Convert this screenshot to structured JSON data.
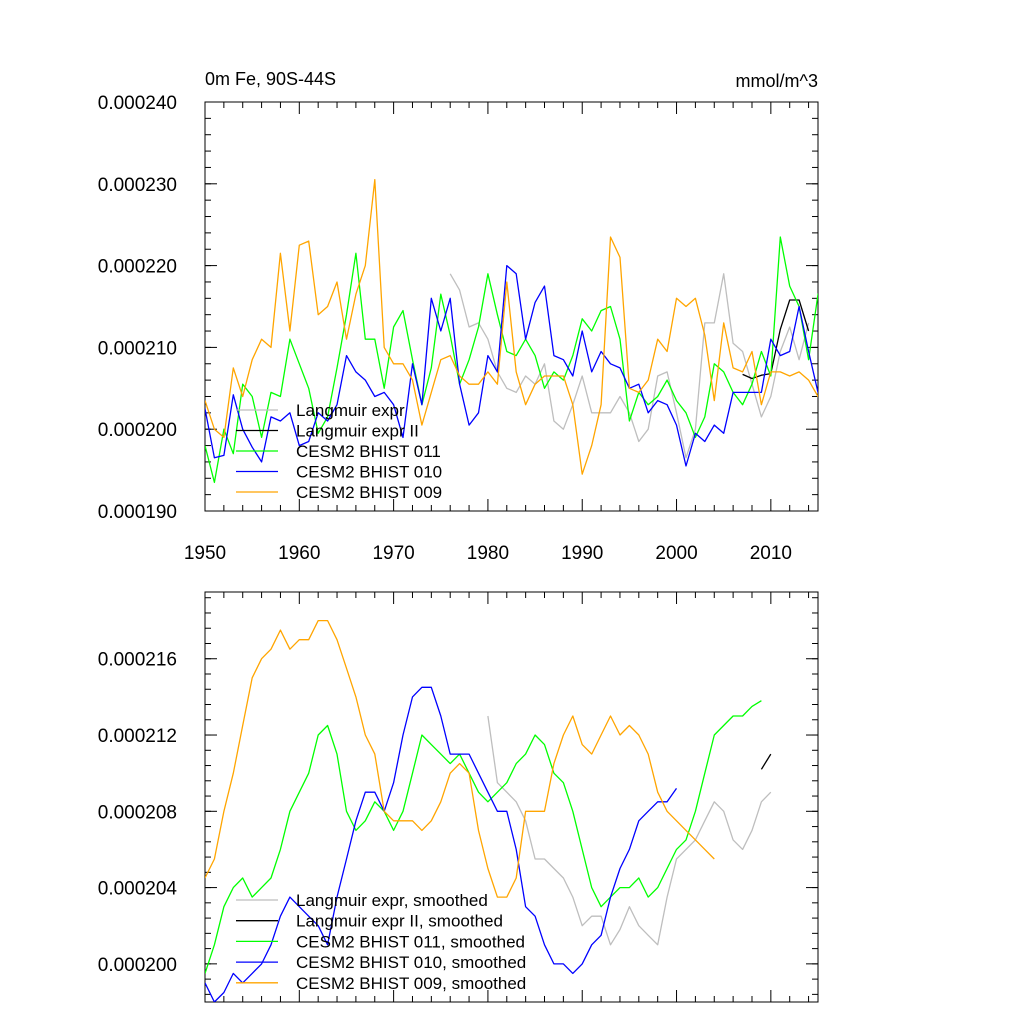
{
  "chart_data": [
    {
      "type": "line",
      "title_left": "0m Fe, 90S-44S",
      "title_right": "mmol/m^3",
      "xlim": [
        1950,
        2015
      ],
      "ylim": [
        0.00019,
        0.00024
      ],
      "x_ticks": [
        1950,
        1960,
        1970,
        1980,
        1990,
        2000,
        2010
      ],
      "y_ticks": [
        0.00019,
        0.0002,
        0.00021,
        0.00022,
        0.00023,
        0.00024
      ],
      "x_tick_labels": [
        "1950",
        "1960",
        "1970",
        "1980",
        "1990",
        "2000",
        "2010"
      ],
      "y_tick_labels": [
        "0.000190",
        "0.000200",
        "0.000210",
        "0.000220",
        "0.000230",
        "0.000240"
      ],
      "series": [
        {
          "name": "Langmuir expr",
          "color": "#bebebe",
          "x_start": 1976,
          "values": [
            0.000219,
            0.000217,
            0.0002125,
            0.000213,
            0.000211,
            0.000207,
            0.000205,
            0.0002045,
            0.0002065,
            0.0002055,
            0.000208,
            0.000201,
            0.0002,
            0.000203,
            0.0002065,
            0.000202,
            0.000202,
            0.000202,
            0.000204,
            0.000202,
            0.0001985,
            0.0002,
            0.0002065,
            0.000207,
            0.000202,
            0.0001965,
            0.0002,
            0.000213,
            0.000213,
            0.000219,
            0.0002105,
            0.0002095,
            0.0002055,
            0.0002015,
            0.000204,
            0.0002095,
            0.0002125,
            0.0002085,
            0.000213
          ]
        },
        {
          "name": "Langmuir expr II",
          "color": "#000000",
          "x_start": 2007,
          "values": [
            0.0002067,
            0.0002062,
            0.0002066,
            0.0002068,
            0.0002122,
            0.0002158,
            0.0002158,
            0.000212
          ]
        },
        {
          "name": "CESM2 BHIST 011",
          "color": "#00ff00",
          "x_start": 1950,
          "values": [
            0.000198,
            0.0001935,
            0.0002,
            0.000197,
            0.0002055,
            0.000204,
            0.000199,
            0.0002045,
            0.000204,
            0.000211,
            0.000208,
            0.000205,
            0.0001995,
            0.0002015,
            0.0002075,
            0.000214,
            0.0002215,
            0.000211,
            0.000211,
            0.000205,
            0.0002125,
            0.0002145,
            0.0002085,
            0.000203,
            0.0002075,
            0.0002165,
            0.0002115,
            0.0002055,
            0.0002085,
            0.0002125,
            0.000219,
            0.000214,
            0.0002095,
            0.000209,
            0.000211,
            0.000209,
            0.000205,
            0.000207,
            0.000206,
            0.000209,
            0.0002135,
            0.000212,
            0.0002145,
            0.000215,
            0.000211,
            0.000201,
            0.0002045,
            0.000203,
            0.000204,
            0.000206,
            0.0002035,
            0.000202,
            0.000199,
            0.0002015,
            0.000208,
            0.000207,
            0.0002045,
            0.000203,
            0.0002055,
            0.0002095,
            0.0002065,
            0.0002235,
            0.0002175,
            0.000215,
            0.0002085,
            0.0002165,
            0.000208
          ]
        },
        {
          "name": "CESM2 BHIST 010",
          "color": "#0000ff",
          "x_start": 1950,
          "values": [
            0.0002025,
            0.0001965,
            0.0001968,
            0.0002042,
            0.0002,
            0.0001978,
            0.000196,
            0.0002015,
            0.000201,
            0.000202,
            0.000198,
            0.0001985,
            0.000202,
            0.000201,
            0.000203,
            0.000209,
            0.000207,
            0.000206,
            0.000204,
            0.0002045,
            0.000203,
            0.000199,
            0.000208,
            0.000203,
            0.000216,
            0.000212,
            0.000216,
            0.0002055,
            0.0002005,
            0.000202,
            0.000209,
            0.000207,
            0.00022,
            0.000219,
            0.000211,
            0.0002155,
            0.0002175,
            0.000209,
            0.0002085,
            0.0002065,
            0.000212,
            0.000207,
            0.0002095,
            0.000208,
            0.0002075,
            0.000205,
            0.0002055,
            0.000202,
            0.0002035,
            0.000203,
            0.0002005,
            0.0001955,
            0.0001995,
            0.0001985,
            0.0002005,
            0.0001995,
            0.0002045,
            0.0002045,
            0.0002045,
            0.0002045,
            0.000211,
            0.000209,
            0.0002095,
            0.000215,
            0.0002095,
            0.0002045,
            0.0002095
          ]
        },
        {
          "name": "CESM2 BHIST 009",
          "color": "#ffa500",
          "x_start": 1950,
          "values": [
            0.0002035,
            0.0002,
            0.000199,
            0.0002075,
            0.000204,
            0.0002085,
            0.000211,
            0.00021,
            0.0002215,
            0.000212,
            0.0002225,
            0.000223,
            0.000214,
            0.000215,
            0.000218,
            0.000211,
            0.0002165,
            0.00022,
            0.0002305,
            0.00021,
            0.000208,
            0.000208,
            0.000206,
            0.0002005,
            0.0002045,
            0.0002085,
            0.000209,
            0.0002065,
            0.0002055,
            0.0002055,
            0.000207,
            0.0002055,
            0.000218,
            0.000207,
            0.000203,
            0.0002055,
            0.0002065,
            0.0002065,
            0.0002065,
            0.000203,
            0.0001945,
            0.000198,
            0.000203,
            0.0002235,
            0.000221,
            0.000205,
            0.0002045,
            0.000206,
            0.000211,
            0.0002095,
            0.000216,
            0.000215,
            0.000216,
            0.0002115,
            0.0002035,
            0.000213,
            0.0002075,
            0.000207,
            0.0002095,
            0.000203,
            0.000207,
            0.000207,
            0.0002065,
            0.000207,
            0.000206,
            0.000204,
            0.000203
          ]
        }
      ]
    },
    {
      "type": "line",
      "xlim": [
        1950,
        2015
      ],
      "ylim": [
        0.000198,
        0.0002195
      ],
      "x_ticks": [
        1950,
        1960,
        1970,
        1980,
        1990,
        2000,
        2010
      ],
      "y_ticks": [
        0.0002,
        0.000204,
        0.000208,
        0.000212,
        0.000216
      ],
      "y_tick_labels": [
        "0.000200",
        "0.000204",
        "0.000208",
        "0.000212",
        "0.000216"
      ],
      "series": [
        {
          "name": "Langmuir expr, smoothed",
          "color": "#bebebe",
          "x_start": 1980,
          "values": [
            0.000213,
            0.0002095,
            0.000209,
            0.0002085,
            0.0002075,
            0.0002055,
            0.0002055,
            0.000205,
            0.0002045,
            0.0002035,
            0.000202,
            0.0002025,
            0.0002025,
            0.000201,
            0.0002018,
            0.000203,
            0.000202,
            0.0002015,
            0.000201,
            0.0002035,
            0.0002055,
            0.000206,
            0.0002065,
            0.0002075,
            0.0002085,
            0.000208,
            0.0002065,
            0.000206,
            0.000207,
            0.0002085,
            0.000209
          ]
        },
        {
          "name": "Langmuir expr II, smoothed",
          "color": "#000000",
          "x_start": 2009,
          "values": [
            0.0002102,
            0.000211
          ]
        },
        {
          "name": "CESM2 BHIST 011, smoothed",
          "color": "#00ff00",
          "x_start": 1950,
          "values": [
            0.0001995,
            0.000201,
            0.000203,
            0.000204,
            0.0002045,
            0.0002035,
            0.000204,
            0.0002045,
            0.000206,
            0.000208,
            0.000209,
            0.00021,
            0.000212,
            0.0002125,
            0.000211,
            0.000208,
            0.000207,
            0.0002075,
            0.0002085,
            0.000208,
            0.000207,
            0.000208,
            0.00021,
            0.000212,
            0.0002115,
            0.000211,
            0.0002105,
            0.000211,
            0.00021,
            0.000209,
            0.0002085,
            0.000209,
            0.0002095,
            0.0002105,
            0.000211,
            0.000212,
            0.0002115,
            0.00021,
            0.0002095,
            0.000208,
            0.000206,
            0.000204,
            0.000203,
            0.0002035,
            0.000204,
            0.000204,
            0.0002045,
            0.0002035,
            0.000204,
            0.000205,
            0.000206,
            0.0002065,
            0.000208,
            0.00021,
            0.000212,
            0.0002125,
            0.000213,
            0.000213,
            0.0002135,
            0.0002138
          ]
        },
        {
          "name": "CESM2 BHIST 010, smoothed",
          "color": "#0000ff",
          "x_start": 1950,
          "values": [
            0.000199,
            0.000198,
            0.0001985,
            0.0001995,
            0.000199,
            0.0001995,
            0.0002,
            0.000201,
            0.0002025,
            0.0002035,
            0.000203,
            0.0002025,
            0.000202,
            0.000201,
            0.0002035,
            0.0002055,
            0.0002075,
            0.000209,
            0.000209,
            0.000208,
            0.0002095,
            0.000212,
            0.000214,
            0.0002145,
            0.0002145,
            0.000213,
            0.000211,
            0.000211,
            0.000211,
            0.00021,
            0.000209,
            0.000208,
            0.000208,
            0.000206,
            0.000203,
            0.0002025,
            0.000201,
            0.0002,
            0.0002,
            0.0001995,
            0.0002,
            0.000201,
            0.0002015,
            0.0002035,
            0.000205,
            0.000206,
            0.0002075,
            0.000208,
            0.0002085,
            0.0002085,
            0.0002092
          ]
        },
        {
          "name": "CESM2 BHIST 009, smoothed",
          "color": "#ffa500",
          "x_start": 1950,
          "values": [
            0.0002045,
            0.0002055,
            0.000208,
            0.00021,
            0.0002125,
            0.000215,
            0.000216,
            0.0002165,
            0.0002175,
            0.0002165,
            0.000217,
            0.000217,
            0.000218,
            0.000218,
            0.000217,
            0.0002155,
            0.000214,
            0.000212,
            0.000211,
            0.000208,
            0.0002075,
            0.0002075,
            0.0002075,
            0.000207,
            0.0002075,
            0.0002085,
            0.00021,
            0.0002105,
            0.00021,
            0.000207,
            0.000205,
            0.0002035,
            0.0002035,
            0.0002045,
            0.000208,
            0.000208,
            0.000208,
            0.0002105,
            0.000212,
            0.000213,
            0.0002115,
            0.000211,
            0.000212,
            0.000213,
            0.000212,
            0.0002125,
            0.000212,
            0.000211,
            0.000209,
            0.000208,
            0.0002075,
            0.000207,
            0.0002065,
            0.000206,
            0.0002055
          ]
        }
      ]
    }
  ]
}
